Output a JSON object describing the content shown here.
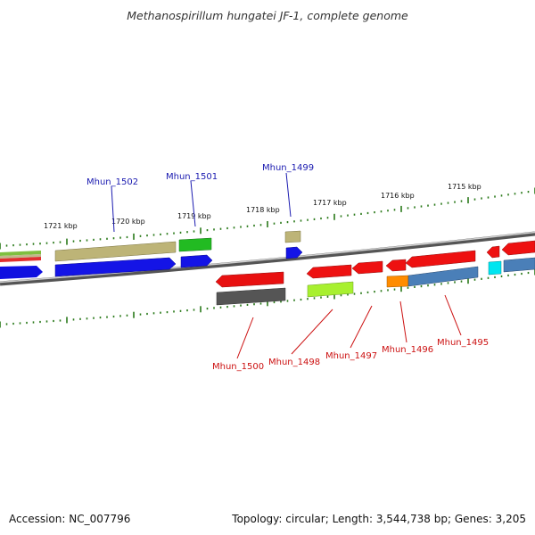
{
  "title": "Methanospirillum hungatei JF-1, complete genome",
  "footer": {
    "accession_label": "Accession:",
    "accession": "NC_007796",
    "topology_label": "Topology:",
    "topology": "circular",
    "length_label": "Length:",
    "length": "3,544,738 bp",
    "genes_label": "Genes:",
    "genes": "3,205"
  },
  "scale_labels": [
    "1721 kbp",
    "1720 kbp",
    "1719 kbp",
    "1718 kbp",
    "1717 kbp",
    "1716 kbp",
    "1715 kbp"
  ],
  "colors": {
    "backbone": "#888888",
    "tick": "#2a7a1a",
    "label_top": "#1a1ab0",
    "label_bottom": "#cc1111"
  },
  "genes_top": [
    {
      "id": "Mhun_1502",
      "color": "#bdb477"
    },
    {
      "id": "Mhun_1501",
      "color": "#22bb22"
    },
    {
      "id": "Mhun_1499",
      "color": "#bdb477"
    }
  ],
  "genes_bottom": [
    {
      "id": "Mhun_1500",
      "color": "#e81010"
    },
    {
      "id": "Mhun_1498",
      "color": "#ee1111"
    },
    {
      "id": "Mhun_1497",
      "color": "#ee1111"
    },
    {
      "id": "Mhun_1496",
      "color": "#ee1111"
    },
    {
      "id": "Mhun_1495",
      "color": "#ee1111"
    }
  ]
}
